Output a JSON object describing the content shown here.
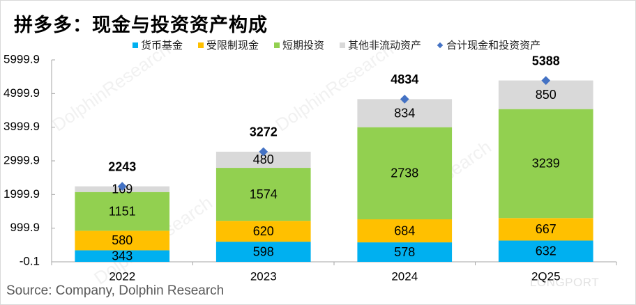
{
  "title": "拼多多：现金与投资资产构成",
  "source": "Source:  Company, Dolphin Research",
  "watermarks": [
    "海豚投研",
    "DolphinResearch",
    "LONGPORT"
  ],
  "colors": {
    "money_fund": "#00B0F0",
    "restricted_cash": "#FFC000",
    "short_term_investment": "#92D050",
    "other_noncurrent": "#D9D9D9",
    "total_marker": "#4472C4"
  },
  "chart_data": {
    "type": "bar",
    "stacked": true,
    "title": "拼多多：现金与投资资产构成",
    "xlabel": "",
    "ylabel": "",
    "categories": [
      "2022",
      "2023",
      "2024",
      "2Q25"
    ],
    "yticks": [
      "-0.1",
      "999.9",
      "1999.9",
      "2999.9",
      "3999.9",
      "4999.9",
      "5999.9"
    ],
    "ylim": [
      -0.1,
      5999.9
    ],
    "grid": false,
    "legend_position": "top",
    "series": [
      {
        "name": "货币基金",
        "key": "money_fund",
        "values": [
          343,
          598,
          578,
          632
        ]
      },
      {
        "name": "受限制现金",
        "key": "restricted_cash",
        "values": [
          580,
          620,
          684,
          667
        ]
      },
      {
        "name": "短期投资",
        "key": "short_term_investment",
        "values": [
          1151,
          1574,
          2738,
          3239
        ]
      },
      {
        "name": "其他非流动资产",
        "key": "other_noncurrent",
        "values": [
          169,
          480,
          834,
          850
        ]
      }
    ],
    "total": {
      "name": "合计现金和投资资产",
      "type": "scatter",
      "marker": "diamond",
      "values": [
        2243,
        3272,
        4834,
        5388
      ]
    }
  }
}
